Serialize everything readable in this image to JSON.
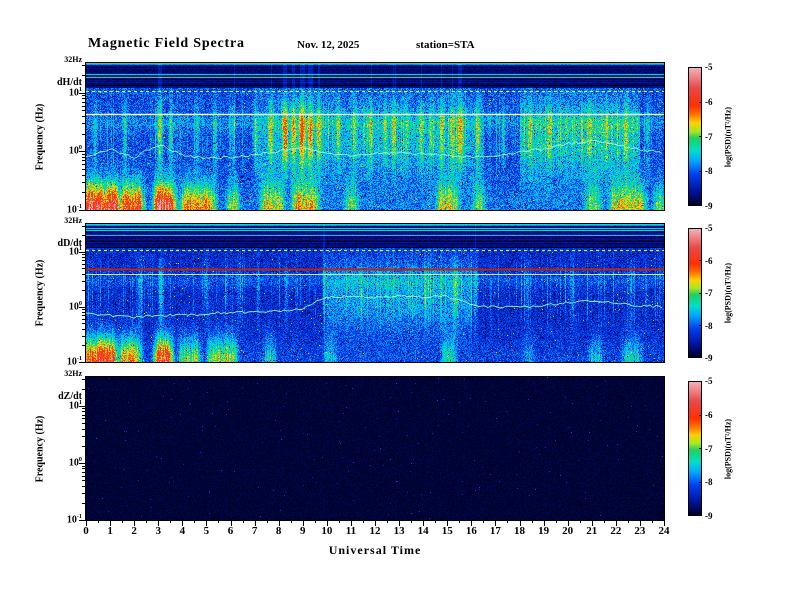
{
  "header": {
    "title": "Magnetic  Field  Spectra",
    "date": "Nov. 12, 2025",
    "station": "station=STA"
  },
  "axes": {
    "xlabel": "Universal  Time",
    "ylabel": "Frequency  (Hz)",
    "y_top_label": "32Hz",
    "y_ticks": [
      {
        "base": "10",
        "exp": "1"
      },
      {
        "base": "10",
        "exp": "0"
      },
      {
        "base": "10",
        "exp": "-1"
      }
    ],
    "x_tick_labels": [
      "0",
      "1",
      "2",
      "3",
      "4",
      "5",
      "6",
      "7",
      "8",
      "9",
      "10",
      "11",
      "12",
      "13",
      "14",
      "15",
      "16",
      "17",
      "18",
      "19",
      "20",
      "21",
      "22",
      "23",
      "24"
    ]
  },
  "colorbar": {
    "label": "log(PSD)(nT²/Hz)",
    "tick_labels": [
      "-5",
      "-6",
      "-7",
      "-8",
      "-9"
    ],
    "min": -9,
    "max": -5,
    "stops": [
      [
        -9.0,
        "#000020"
      ],
      [
        -8.6,
        "#00129a"
      ],
      [
        -8.1,
        "#0040f0"
      ],
      [
        -7.7,
        "#00a8ff"
      ],
      [
        -7.4,
        "#00e0c8"
      ],
      [
        -7.05,
        "#20d060"
      ],
      [
        -6.85,
        "#a8e820"
      ],
      [
        -6.6,
        "#ffd000"
      ],
      [
        -6.35,
        "#ff7000"
      ],
      [
        -6.1,
        "#ff3000"
      ],
      [
        -5.6,
        "#e84848"
      ],
      [
        -5.0,
        "#f4b4bc"
      ]
    ]
  },
  "chart_data": {
    "type": "heatmap",
    "subtype": "spectrogram",
    "title": "Magnetic Field Spectra",
    "date": "Nov. 12, 2025",
    "station": "STA",
    "xlabel": "Universal Time",
    "ylabel": "Frequency (Hz)",
    "x_range_hours": [
      0,
      24
    ],
    "y_range_hz": [
      0.1,
      32
    ],
    "y_scale": "log",
    "color_scale": {
      "label": "log(PSD)(nT²/Hz)",
      "range": [
        -9,
        -5
      ]
    },
    "panels": [
      {
        "id": "dhdt",
        "component": "dH/dt",
        "has_data": true,
        "striped_top": true,
        "base_level": -8.5,
        "noise_amp": 0.8,
        "horizontal_lines": [
          {
            "f_hz": 10.8,
            "color": "#cdf53c",
            "style": "dashed",
            "width": 1.2
          },
          {
            "f_hz": 4.3,
            "color": "#f4f4f4",
            "style": "solid",
            "width": 1.6
          }
        ],
        "low_freq_bursts": [
          {
            "t0": 0.0,
            "t1": 1.3,
            "level": 1.0
          },
          {
            "t0": 1.4,
            "t1": 2.3,
            "level": 0.8
          },
          {
            "t0": 2.9,
            "t1": 3.6,
            "level": 1.05
          },
          {
            "t0": 4.0,
            "t1": 5.3,
            "level": 0.7
          },
          {
            "t0": 5.9,
            "t1": 6.3,
            "level": 0.5
          },
          {
            "t0": 7.3,
            "t1": 8.1,
            "level": 0.6
          },
          {
            "t0": 8.6,
            "t1": 9.6,
            "level": 0.6
          },
          {
            "t0": 10.8,
            "t1": 11.2,
            "level": 0.45
          },
          {
            "t0": 14.6,
            "t1": 15.4,
            "level": 0.55
          },
          {
            "t0": 16.1,
            "t1": 16.5,
            "level": 0.4
          },
          {
            "t0": 20.8,
            "t1": 21.3,
            "level": 0.45
          },
          {
            "t0": 21.8,
            "t1": 23.2,
            "level": 0.55
          },
          {
            "t0": 23.6,
            "t1": 24.0,
            "level": 0.4
          }
        ],
        "vertical_streaks": [
          [
            0.35,
            0.6
          ],
          [
            1.6,
            0.7
          ],
          [
            3.05,
            1.2
          ],
          [
            3.5,
            0.8
          ],
          [
            4.6,
            0.6
          ],
          [
            5.35,
            0.7
          ],
          [
            6.1,
            0.5
          ],
          [
            7.0,
            0.6
          ],
          [
            7.65,
            0.8
          ],
          [
            8.25,
            1.3
          ],
          [
            8.6,
            1.1
          ],
          [
            8.95,
            1.5
          ],
          [
            9.3,
            1.2
          ],
          [
            9.65,
            1.0
          ],
          [
            10.45,
            0.7
          ],
          [
            11.15,
            0.6
          ],
          [
            11.8,
            0.7
          ],
          [
            12.4,
            0.6
          ],
          [
            12.75,
            0.8
          ],
          [
            13.3,
            0.6
          ],
          [
            13.9,
            0.7
          ],
          [
            14.3,
            0.6
          ],
          [
            14.75,
            0.8
          ],
          [
            15.2,
            0.9
          ],
          [
            15.55,
            1.0
          ],
          [
            16.25,
            0.7
          ],
          [
            17.3,
            0.5
          ],
          [
            18.45,
            0.6
          ],
          [
            19.2,
            0.5
          ],
          [
            20.9,
            0.6
          ],
          [
            21.6,
            0.5
          ],
          [
            22.4,
            0.6
          ],
          [
            23.3,
            0.5
          ]
        ],
        "enhancements": [
          {
            "t0": 7.0,
            "t1": 16.5,
            "f_center_log": 0.2,
            "f_sigma_log": 0.7,
            "level": 0.35
          },
          {
            "t0": 18.0,
            "t1": 23.0,
            "f_center_log": 0.15,
            "f_sigma_log": 0.35,
            "level": 0.5
          }
        ],
        "median_trace": {
          "hours": [
            0,
            1,
            2,
            3,
            4,
            5,
            6,
            7,
            8,
            9,
            10,
            11,
            12,
            13,
            14,
            15,
            16,
            17,
            18,
            19,
            20,
            21,
            22,
            23,
            24
          ],
          "f_hz": [
            0.8,
            1.1,
            0.75,
            1.3,
            0.85,
            0.75,
            0.8,
            0.85,
            1.0,
            1.15,
            0.9,
            0.85,
            0.9,
            0.95,
            0.9,
            0.85,
            0.8,
            0.85,
            0.95,
            1.1,
            1.35,
            1.5,
            1.3,
            1.05,
            0.95
          ]
        }
      },
      {
        "id": "dddt",
        "component": "dD/dt",
        "has_data": true,
        "striped_top": true,
        "base_level": -8.65,
        "noise_amp": 0.65,
        "horizontal_lines": [
          {
            "f_hz": 10.8,
            "color": "#cdf53c",
            "style": "dashed",
            "width": 1.2
          },
          {
            "f_hz": 4.9,
            "color": "#cc2000",
            "style": "solid",
            "width": 2
          },
          {
            "f_hz": 4.0,
            "color": "#dcdcdc",
            "style": "solid",
            "width": 1
          }
        ],
        "low_freq_bursts": [
          {
            "t0": 0.0,
            "t1": 1.2,
            "level": 0.95
          },
          {
            "t0": 1.4,
            "t1": 2.2,
            "level": 0.7
          },
          {
            "t0": 2.9,
            "t1": 3.5,
            "level": 1.0
          },
          {
            "t0": 3.9,
            "t1": 4.7,
            "level": 0.55
          },
          {
            "t0": 5.1,
            "t1": 6.2,
            "level": 0.6
          },
          {
            "t0": 7.4,
            "t1": 7.8,
            "level": 0.35
          },
          {
            "t0": 9.9,
            "t1": 10.3,
            "level": 0.3
          },
          {
            "t0": 14.8,
            "t1": 15.3,
            "level": 0.35
          },
          {
            "t0": 18.2,
            "t1": 18.5,
            "level": 0.25
          },
          {
            "t0": 20.9,
            "t1": 21.4,
            "level": 0.3
          },
          {
            "t0": 22.3,
            "t1": 23.0,
            "level": 0.35
          }
        ],
        "vertical_streaks": [
          [
            2.2,
            0.5
          ],
          [
            3.1,
            0.8
          ],
          [
            5.0,
            0.5
          ],
          [
            6.3,
            0.35
          ],
          [
            8.3,
            0.4
          ],
          [
            9.9,
            0.6
          ],
          [
            11.4,
            0.3
          ],
          [
            12.5,
            0.35
          ],
          [
            14.1,
            0.3
          ],
          [
            15.3,
            0.7
          ],
          [
            16.15,
            0.8
          ],
          [
            18.3,
            0.35
          ],
          [
            20.2,
            0.45
          ],
          [
            22.6,
            0.4
          ]
        ],
        "enhancements": [
          {
            "t0": 10.0,
            "t1": 16.0,
            "f_center_log": 0.25,
            "f_sigma_log": 0.35,
            "level": 0.45
          }
        ],
        "median_trace": {
          "hours": [
            0,
            1,
            2,
            3,
            4,
            5,
            6,
            7,
            8,
            9,
            10,
            11,
            12,
            13,
            14,
            15,
            16,
            17,
            18,
            19,
            20,
            21,
            22,
            23,
            24
          ],
          "f_hz": [
            0.75,
            0.7,
            0.65,
            0.7,
            0.7,
            0.75,
            0.8,
            0.8,
            0.85,
            0.9,
            1.5,
            1.55,
            1.5,
            1.55,
            1.5,
            1.55,
            1.05,
            1.0,
            1.0,
            1.05,
            1.2,
            1.3,
            1.2,
            1.05,
            1.0
          ]
        }
      },
      {
        "id": "dzdt",
        "component": "dZ/dt",
        "has_data": false,
        "striped_top": false,
        "appearance": "black panel, no power above noise floor"
      }
    ]
  }
}
